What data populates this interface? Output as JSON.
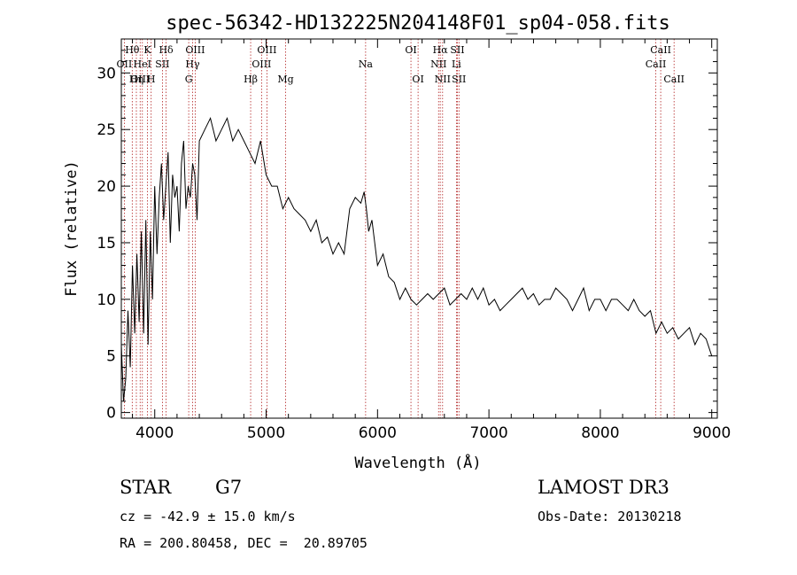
{
  "chart_data": {
    "type": "line",
    "title": "spec-56342-HD132225N204148F01_sp04-058.fits",
    "xlabel": "Wavelength (Å)",
    "ylabel": "Flux (relative)",
    "xlim": [
      3700,
      9050
    ],
    "ylim": [
      -0.5,
      33
    ],
    "xticks": [
      4000,
      5000,
      6000,
      7000,
      8000,
      9000
    ],
    "yticks": [
      0,
      5,
      10,
      15,
      20,
      25,
      30
    ],
    "series": [
      {
        "name": "flux",
        "x": [
          3700,
          3720,
          3740,
          3760,
          3780,
          3800,
          3820,
          3840,
          3860,
          3880,
          3900,
          3920,
          3940,
          3960,
          3980,
          4000,
          4020,
          4040,
          4060,
          4080,
          4100,
          4120,
          4140,
          4160,
          4180,
          4200,
          4220,
          4240,
          4260,
          4280,
          4300,
          4320,
          4340,
          4360,
          4380,
          4400,
          4450,
          4500,
          4550,
          4600,
          4650,
          4700,
          4750,
          4800,
          4850,
          4900,
          4950,
          5000,
          5050,
          5100,
          5150,
          5200,
          5250,
          5300,
          5350,
          5400,
          5450,
          5500,
          5550,
          5600,
          5650,
          5700,
          5750,
          5800,
          5850,
          5880,
          5900,
          5920,
          5950,
          6000,
          6050,
          6100,
          6150,
          6200,
          6250,
          6300,
          6350,
          6400,
          6450,
          6500,
          6550,
          6600,
          6650,
          6700,
          6750,
          6800,
          6850,
          6900,
          6950,
          7000,
          7050,
          7100,
          7150,
          7200,
          7250,
          7300,
          7350,
          7400,
          7450,
          7500,
          7550,
          7600,
          7650,
          7700,
          7750,
          7800,
          7850,
          7900,
          7950,
          8000,
          8050,
          8100,
          8150,
          8200,
          8250,
          8300,
          8350,
          8400,
          8450,
          8500,
          8550,
          8600,
          8650,
          8700,
          8750,
          8800,
          8850,
          8900,
          8950,
          9000
        ],
        "y": [
          6,
          1,
          3,
          9,
          4,
          13,
          7,
          14,
          8,
          16,
          7,
          17,
          6,
          16,
          10,
          20,
          14,
          19,
          22,
          17,
          20,
          23,
          15,
          21,
          19,
          20,
          16,
          22,
          24,
          18,
          20,
          19,
          22,
          21,
          17,
          24,
          25,
          26,
          24,
          25,
          26,
          24,
          25,
          24,
          23,
          22,
          24,
          21,
          20,
          20,
          18,
          19,
          18,
          17.5,
          17,
          16,
          17,
          15,
          15.5,
          14,
          15,
          14,
          18,
          19,
          18.5,
          19.5,
          18,
          16,
          17,
          13,
          14,
          12,
          11.5,
          10,
          11,
          10,
          9.5,
          10,
          10.5,
          10,
          10.5,
          11,
          9.5,
          10,
          10.5,
          10,
          11,
          10,
          11,
          9.5,
          10,
          9,
          9.5,
          10,
          10.5,
          11,
          10,
          10.5,
          9.5,
          10,
          10,
          11,
          10.5,
          10,
          9,
          10,
          11,
          9,
          10,
          10,
          9,
          10,
          10,
          9.5,
          9,
          10,
          9,
          8.5,
          9,
          7,
          8,
          7,
          7.5,
          6.5,
          7,
          7.5,
          6,
          7,
          6.5,
          5
        ]
      }
    ],
    "spectral_lines": [
      {
        "name": "Hθ",
        "wave": 3798,
        "row": 1
      },
      {
        "name": "OII",
        "wave": 3727,
        "row": 2
      },
      {
        "name": "OIII",
        "wave": 3869,
        "row": 3
      },
      {
        "name": "Hη",
        "wave": 3835,
        "row": 3
      },
      {
        "name": "HeI",
        "wave": 3889,
        "row": 2
      },
      {
        "name": "K",
        "wave": 3934,
        "row": 1
      },
      {
        "name": "SII",
        "wave": 4069,
        "row": 2
      },
      {
        "name": "H",
        "wave": 3968,
        "row": 3
      },
      {
        "name": "Hδ",
        "wave": 4102,
        "row": 1
      },
      {
        "name": "OIII",
        "wave": 4363,
        "row": 1
      },
      {
        "name": "Hγ",
        "wave": 4340,
        "row": 2
      },
      {
        "name": "G",
        "wave": 4305,
        "row": 3
      },
      {
        "name": "Hβ",
        "wave": 4861,
        "row": 3
      },
      {
        "name": "OIII",
        "wave": 5007,
        "row": 1
      },
      {
        "name": "OIII",
        "wave": 4959,
        "row": 2
      },
      {
        "name": "Mg",
        "wave": 5175,
        "row": 3
      },
      {
        "name": "Na",
        "wave": 5893,
        "row": 2
      },
      {
        "name": "OI",
        "wave": 6300,
        "row": 1
      },
      {
        "name": "OI",
        "wave": 6364,
        "row": 3
      },
      {
        "name": "Hα",
        "wave": 6563,
        "row": 1
      },
      {
        "name": "NII",
        "wave": 6548,
        "row": 2
      },
      {
        "name": "NII",
        "wave": 6584,
        "row": 3
      },
      {
        "name": "SII",
        "wave": 6717,
        "row": 1
      },
      {
        "name": "Li",
        "wave": 6708,
        "row": 2
      },
      {
        "name": "SII",
        "wave": 6731,
        "row": 3
      },
      {
        "name": "CaII",
        "wave": 8542,
        "row": 1
      },
      {
        "name": "CaII",
        "wave": 8498,
        "row": 2
      },
      {
        "name": "CaII",
        "wave": 8662,
        "row": 3
      }
    ]
  },
  "info": {
    "object_class": "STAR",
    "subclass": "G7",
    "survey": "LAMOST DR3",
    "cz": "cz = -42.9 ± 15.0 km/s",
    "obs_date": "Obs-Date: 20130218",
    "coords": "RA = 200.80458, DEC =  20.89705"
  }
}
